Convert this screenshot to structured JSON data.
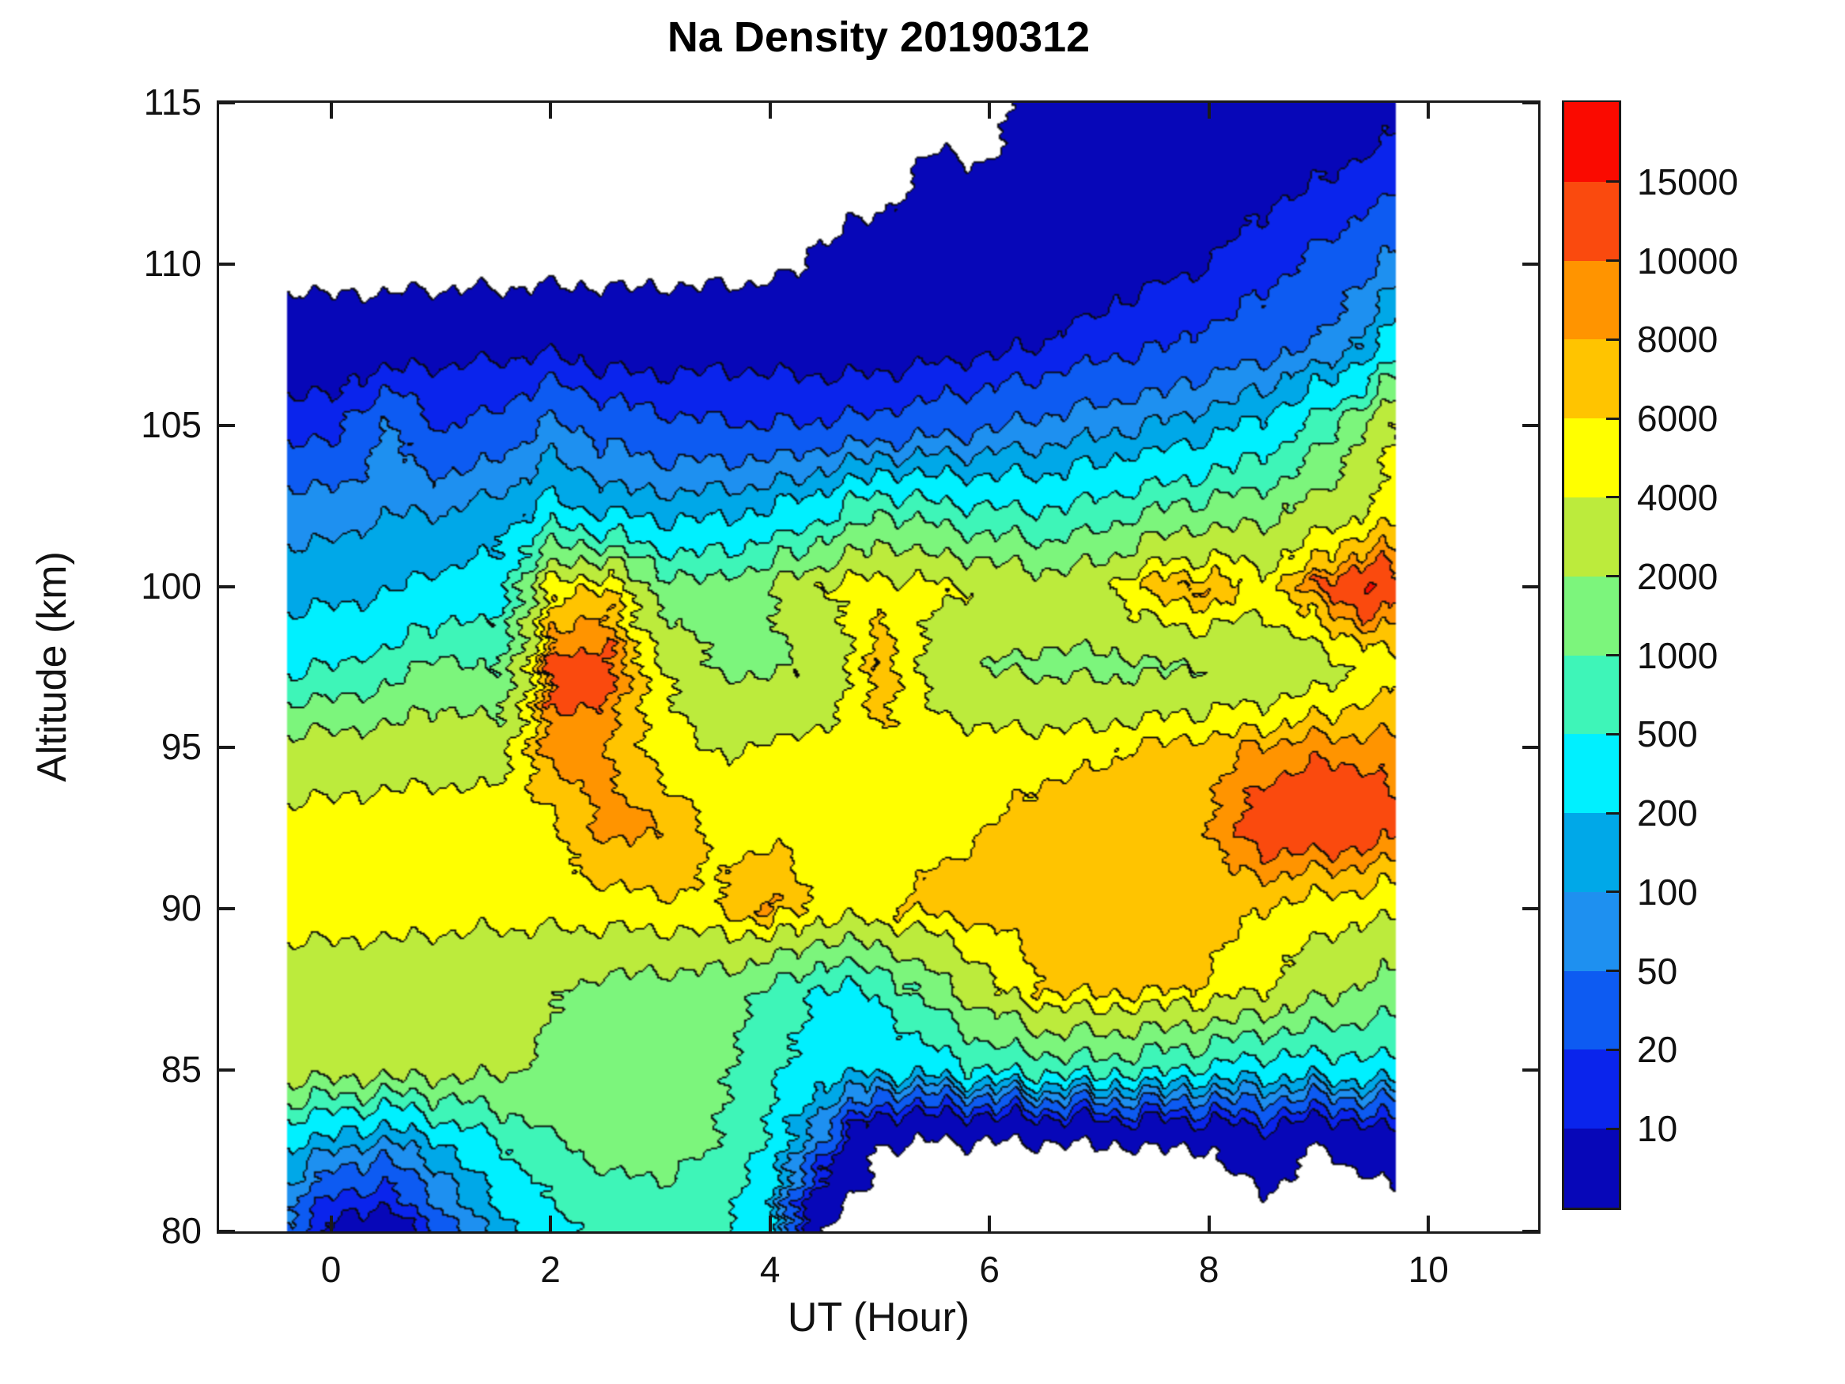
{
  "title": "Na Density 20190312",
  "axes": {
    "xlabel": "UT (Hour)",
    "ylabel": "Altitude (km)",
    "xlim": [
      -1.02,
      11.0
    ],
    "ylim": [
      80,
      115
    ],
    "x_ticks": [
      0,
      2,
      4,
      6,
      8,
      10
    ],
    "y_ticks": [
      80,
      85,
      90,
      95,
      100,
      105,
      110,
      115
    ]
  },
  "colorbar": {
    "tick_labels": [
      "10",
      "20",
      "50",
      "100",
      "200",
      "500",
      "1000",
      "2000",
      "4000",
      "6000",
      "8000",
      "10000",
      "15000"
    ],
    "levels": [
      1,
      10,
      20,
      50,
      100,
      200,
      500,
      1000,
      2000,
      4000,
      6000,
      8000,
      10000,
      15000
    ],
    "colors": [
      "#0707B8",
      "#0A24EC",
      "#0D5BF2",
      "#1E90F0",
      "#00A8E8",
      "#00F0FF",
      "#3EF5B8",
      "#7CF57C",
      "#BCEB3C",
      "#FFFF00",
      "#FFC400",
      "#FF9400",
      "#FA4A0E",
      "#FA0A00"
    ]
  },
  "chart_data": {
    "type": "heatmap",
    "title": "Na Density 20190312",
    "xlabel": "UT (Hour)",
    "ylabel": "Altitude (km)",
    "legend": "Na density, filled contour with discrete levels; white = below lowest level / no data",
    "x_hours": [
      -0.4,
      0,
      0.5,
      1,
      1.5,
      2,
      2.5,
      3,
      3.5,
      4,
      4.5,
      5,
      5.5,
      6,
      6.5,
      7,
      7.5,
      8,
      8.5,
      9,
      9.5,
      9.7
    ],
    "altitudes_km": [
      80,
      82.5,
      85,
      87.5,
      90,
      92.5,
      95,
      97.5,
      100,
      102.5,
      105,
      107.5,
      110,
      112.5,
      115
    ],
    "density_values": [
      [
        40,
        6,
        4,
        30,
        140,
        380,
        650,
        750,
        550,
        200,
        0.5,
        0.4,
        0.4,
        0.4,
        0.4,
        0.4,
        0.4,
        0.4,
        0.4,
        0.4,
        0.4,
        0.4
      ],
      [
        180,
        100,
        60,
        160,
        420,
        900,
        1150,
        1200,
        1000,
        420,
        25,
        0.7,
        0.45,
        0.45,
        0.5,
        0.6,
        0.8,
        0.9,
        2.5,
        0.8,
        1.6,
        2.5
      ],
      [
        2900,
        2800,
        2700,
        2600,
        2300,
        1700,
        1400,
        1300,
        1200,
        600,
        300,
        240,
        320,
        520,
        650,
        700,
        560,
        420,
        300,
        330,
        380,
        400
      ],
      [
        3200,
        3100,
        3000,
        2900,
        2800,
        2200,
        1600,
        1500,
        1400,
        900,
        420,
        550,
        1500,
        3500,
        6300,
        6800,
        6500,
        5800,
        4200,
        2600,
        1700,
        1500
      ],
      [
        4600,
        4700,
        4700,
        4600,
        4500,
        4800,
        5200,
        5600,
        6000,
        8600,
        5200,
        5800,
        6500,
        7200,
        7300,
        7200,
        7300,
        7000,
        6000,
        5000,
        4600,
        4500
      ],
      [
        4800,
        4900,
        5000,
        5100,
        5200,
        5600,
        8800,
        8200,
        5600,
        5400,
        5200,
        5300,
        5500,
        6000,
        7200,
        8000,
        7500,
        8000,
        12500,
        13500,
        12500,
        11000
      ],
      [
        2800,
        2900,
        3100,
        3300,
        3000,
        9500,
        8000,
        5200,
        3800,
        4200,
        5200,
        5500,
        5200,
        5000,
        5200,
        5500,
        6500,
        7200,
        8500,
        9500,
        9000,
        8500
      ],
      [
        450,
        500,
        700,
        1300,
        900,
        11000,
        12000,
        4500,
        1900,
        1800,
        2200,
        8300,
        3000,
        1900,
        1800,
        1700,
        1800,
        2000,
        2200,
        3000,
        4500,
        5500
      ],
      [
        140,
        150,
        180,
        250,
        300,
        5000,
        7000,
        1500,
        1200,
        2000,
        4200,
        5200,
        4500,
        3800,
        2800,
        3500,
        7500,
        8500,
        5000,
        10500,
        16500,
        11000
      ],
      [
        75,
        70,
        95,
        90,
        120,
        250,
        150,
        130,
        150,
        180,
        350,
        900,
        600,
        500,
        450,
        600,
        900,
        1200,
        1500,
        2500,
        4000,
        5200
      ],
      [
        15,
        14,
        55,
        18,
        25,
        60,
        35,
        25,
        22,
        20,
        22,
        25,
        35,
        45,
        60,
        80,
        100,
        150,
        250,
        700,
        2800,
        4200
      ],
      [
        6,
        5,
        5,
        8,
        8,
        8,
        6,
        6,
        7,
        7,
        6,
        6,
        7,
        8,
        10,
        15,
        18,
        25,
        35,
        50,
        150,
        400
      ],
      [
        0.4,
        0.4,
        0.4,
        0.4,
        0.4,
        0.5,
        0.5,
        0.5,
        0.5,
        0.6,
        1.5,
        4,
        5,
        6,
        5,
        6,
        8,
        10,
        15,
        25,
        45,
        60
      ],
      [
        0.4,
        0.4,
        0.4,
        0.4,
        0.4,
        0.4,
        0.4,
        0.4,
        0.4,
        0.4,
        0.4,
        0.4,
        2,
        1.2,
        4,
        5,
        4,
        6,
        8,
        10,
        14,
        18
      ],
      [
        0.4,
        0.4,
        0.4,
        0.4,
        0.4,
        0.4,
        0.4,
        0.4,
        0.4,
        0.4,
        0.4,
        0.4,
        0.4,
        0.5,
        3,
        4,
        2.5,
        3,
        4,
        5,
        6,
        7
      ]
    ]
  }
}
